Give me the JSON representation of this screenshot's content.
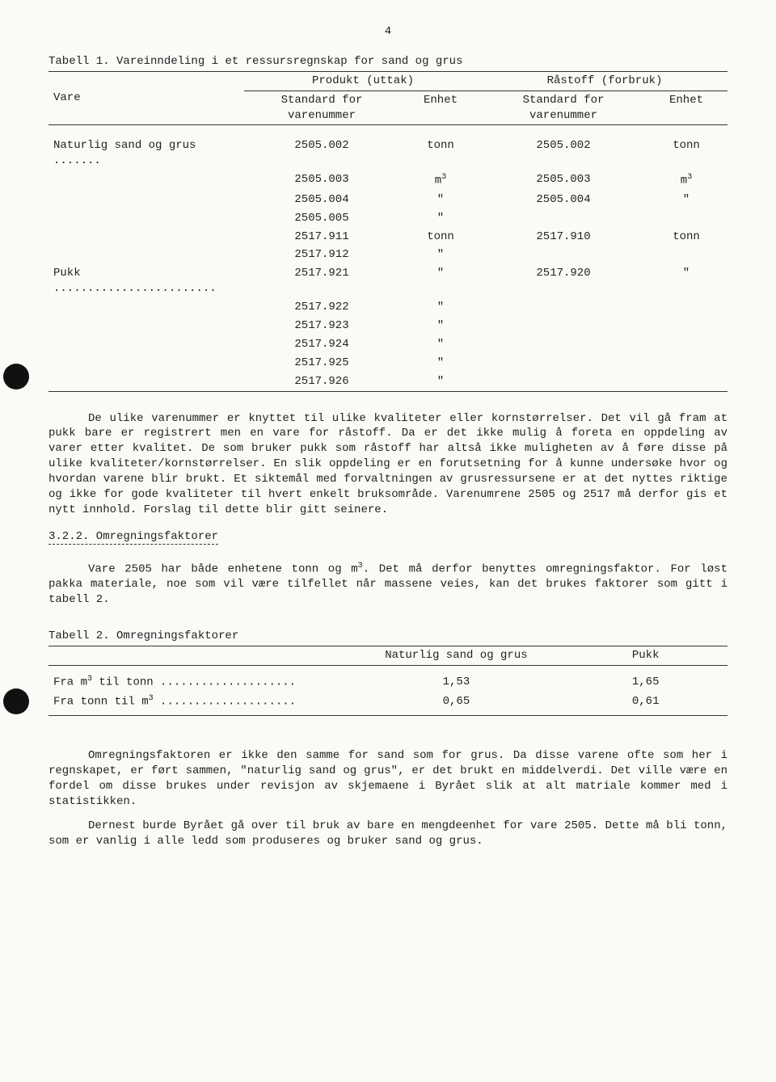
{
  "page_number": "4",
  "table1": {
    "caption": "Tabell 1.  Vareinndeling i et ressursregnskap for sand og grus",
    "head": {
      "vare": "Vare",
      "group_produkt": "Produkt (uttak)",
      "group_rastoff": "Råstoff (forbruk)",
      "std": "Standard for varenummer",
      "enhet": "Enhet"
    },
    "rows": [
      {
        "vare": "Naturlig sand og grus .......",
        "p_num": "2505.002",
        "p_unit": "tonn",
        "r_num": "2505.002",
        "r_unit": "tonn"
      },
      {
        "vare": "",
        "p_num": "2505.003",
        "p_unit_html": "m<span class='sup'>3</span>",
        "r_num": "2505.003",
        "r_unit_html": "m<span class='sup'>3</span>"
      },
      {
        "vare": "",
        "p_num": "2505.004",
        "p_unit": "\"",
        "r_num": "2505.004",
        "r_unit": "\""
      },
      {
        "vare": "",
        "p_num": "2505.005",
        "p_unit": "\"",
        "r_num": "",
        "r_unit": ""
      },
      {
        "vare": "",
        "p_num": "2517.911",
        "p_unit": "tonn",
        "r_num": "2517.910",
        "r_unit": "tonn"
      },
      {
        "vare": "",
        "p_num": "2517.912",
        "p_unit": "\"",
        "r_num": "",
        "r_unit": ""
      },
      {
        "vare": "Pukk ........................",
        "p_num": "2517.921",
        "p_unit": "\"",
        "r_num": "2517.920",
        "r_unit": "\""
      },
      {
        "vare": "",
        "p_num": "2517.922",
        "p_unit": "\"",
        "r_num": "",
        "r_unit": ""
      },
      {
        "vare": "",
        "p_num": "2517.923",
        "p_unit": "\"",
        "r_num": "",
        "r_unit": ""
      },
      {
        "vare": "",
        "p_num": "2517.924",
        "p_unit": "\"",
        "r_num": "",
        "r_unit": ""
      },
      {
        "vare": "",
        "p_num": "2517.925",
        "p_unit": "\"",
        "r_num": "",
        "r_unit": ""
      },
      {
        "vare": "",
        "p_num": "2517.926",
        "p_unit": "\"",
        "r_num": "",
        "r_unit": ""
      }
    ]
  },
  "para1": "De ulike varenummer er knyttet til ulike kvaliteter eller kornstørrelser. Det vil gå fram at pukk bare er registrert men en vare for råstoff. Da er det ikke mulig å foreta en oppdeling av varer etter kvalitet. De som bruker pukk som råstoff har altså ikke muligheten av å føre disse på ulike kvaliteter/kornstørrelser. En slik oppdeling er en forutsetning for å kunne undersøke hvor og hvordan varene blir brukt. Et siktemål med forvaltningen av grusressursene er at det nyttes riktige og ikke for gode kvaliteter til hvert enkelt bruksområde. Varenumrene 2505 og 2517 må derfor gis et nytt innhold. Forslag til dette blir gitt seinere.",
  "heading322": "3.2.2.  Omregningsfaktorer",
  "para2_pre": "Vare 2505 har både enhetene tonn og m",
  "para2_post": ". Det må derfor benyttes omregningsfaktor. For løst pakka materiale, noe som vil være tilfellet når massene veies, kan det brukes faktorer som gitt i tabell 2.",
  "table2": {
    "caption": "Tabell 2.  Omregningsfaktorer",
    "col_sand": "Naturlig sand og grus",
    "col_pukk": "Pukk",
    "rows": [
      {
        "label_pre": "Fra m",
        "label_post": " til tonn ....................",
        "sand": "1,53",
        "pukk": "1,65"
      },
      {
        "label_pre": "Fra tonn til m",
        "label_post": " ....................",
        "sand": "0,65",
        "pukk": "0,61"
      }
    ]
  },
  "para3": "Omregningsfaktoren er ikke den samme for sand som for grus. Da disse varene ofte som her i regnskapet, er ført sammen, \"naturlig sand og grus\", er det brukt en middelverdi. Det ville være en fordel om disse brukes under revisjon av skjemaene i Byrået slik at alt matriale kommer med i statistikken.",
  "para4": "Dernest burde Byrået gå over til bruk av bare en mengdeenhet for vare 2505. Dette må bli tonn, som er vanlig i alle ledd som produseres og bruker sand og grus."
}
